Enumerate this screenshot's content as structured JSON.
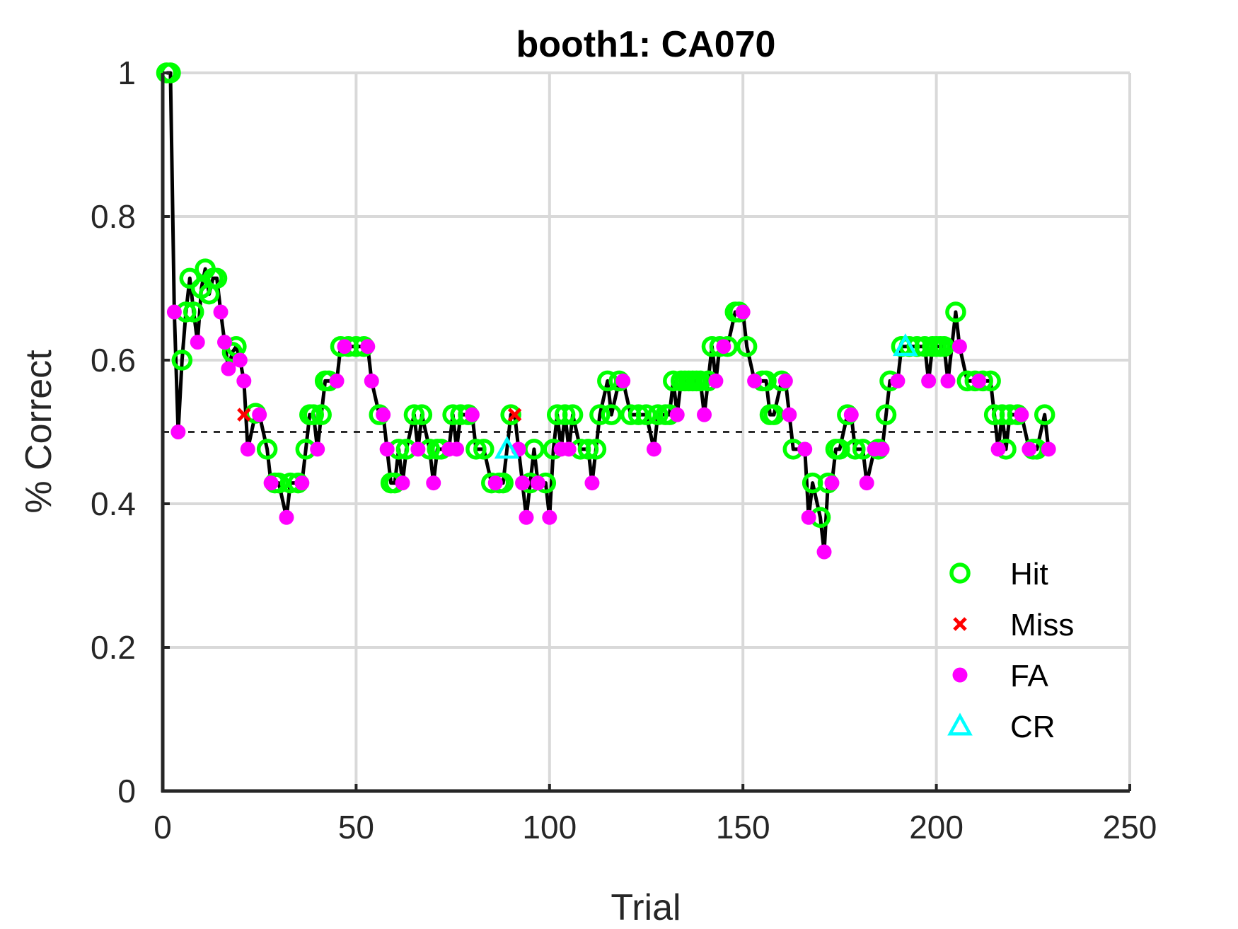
{
  "chart_data": {
    "type": "line",
    "title": "booth1: CA070",
    "xlabel": "Trial",
    "ylabel": "% Correct",
    "xlim": [
      0,
      250
    ],
    "ylim": [
      0,
      1
    ],
    "xticks": [
      "0",
      "50",
      "100",
      "150",
      "200",
      "250"
    ],
    "yticks": [
      "0",
      "0.2",
      "0.4",
      "0.6",
      "0.8",
      "1"
    ],
    "grid": true,
    "legend_position": "bottom-right",
    "chance_level": 0.5,
    "colors": {
      "line": "#000000",
      "hit": "#00ff00",
      "miss": "#ff0000",
      "fa": "#ff00ff",
      "cr": "#00ffff",
      "grid": "#d9d9d9",
      "axis": "#262626"
    },
    "series": [
      {
        "name": "Hit",
        "marker": "circle-open",
        "points": [
          [
            1,
            1
          ],
          [
            2,
            1
          ],
          [
            5,
            0.6
          ],
          [
            6,
            0.667
          ],
          [
            7,
            0.714
          ],
          [
            8,
            0.667
          ],
          [
            10,
            0.7
          ],
          [
            11,
            0.727
          ],
          [
            12,
            0.692
          ],
          [
            13,
            0.714
          ],
          [
            14,
            0.714
          ],
          [
            18,
            0.611
          ],
          [
            19,
            0.619
          ],
          [
            24,
            0.526
          ],
          [
            27,
            0.476
          ],
          [
            29,
            0.429
          ],
          [
            30,
            0.429
          ],
          [
            33,
            0.429
          ],
          [
            35,
            0.429
          ],
          [
            37,
            0.476
          ],
          [
            38,
            0.524
          ],
          [
            39,
            0.524
          ],
          [
            41,
            0.524
          ],
          [
            42,
            0.571
          ],
          [
            43,
            0.571
          ],
          [
            46,
            0.619
          ],
          [
            48,
            0.619
          ],
          [
            50,
            0.619
          ],
          [
            52,
            0.619
          ],
          [
            56,
            0.524
          ],
          [
            59,
            0.429
          ],
          [
            60,
            0.429
          ],
          [
            61,
            0.476
          ],
          [
            63,
            0.476
          ],
          [
            65,
            0.524
          ],
          [
            67,
            0.524
          ],
          [
            69,
            0.476
          ],
          [
            71,
            0.476
          ],
          [
            72,
            0.476
          ],
          [
            75,
            0.524
          ],
          [
            77,
            0.524
          ],
          [
            79,
            0.524
          ],
          [
            81,
            0.476
          ],
          [
            83,
            0.476
          ],
          [
            85,
            0.429
          ],
          [
            87,
            0.429
          ],
          [
            88,
            0.429
          ],
          [
            90,
            0.524
          ],
          [
            95,
            0.429
          ],
          [
            96,
            0.476
          ],
          [
            99,
            0.429
          ],
          [
            101,
            0.476
          ],
          [
            102,
            0.524
          ],
          [
            104,
            0.524
          ],
          [
            106,
            0.524
          ],
          [
            108,
            0.476
          ],
          [
            110,
            0.476
          ],
          [
            112,
            0.476
          ],
          [
            113,
            0.524
          ],
          [
            115,
            0.571
          ],
          [
            116,
            0.524
          ],
          [
            118,
            0.571
          ],
          [
            121,
            0.524
          ],
          [
            123,
            0.524
          ],
          [
            125,
            0.524
          ],
          [
            128,
            0.524
          ],
          [
            130,
            0.524
          ],
          [
            131,
            0.524
          ],
          [
            132,
            0.571
          ],
          [
            134,
            0.571
          ],
          [
            135,
            0.571
          ],
          [
            136,
            0.571
          ],
          [
            137,
            0.571
          ],
          [
            138,
            0.571
          ],
          [
            139,
            0.571
          ],
          [
            141,
            0.571
          ],
          [
            142,
            0.619
          ],
          [
            144,
            0.619
          ],
          [
            146,
            0.619
          ],
          [
            148,
            0.667
          ],
          [
            149,
            0.667
          ],
          [
            151,
            0.619
          ],
          [
            155,
            0.571
          ],
          [
            156,
            0.571
          ],
          [
            157,
            0.524
          ],
          [
            158,
            0.524
          ],
          [
            160,
            0.571
          ],
          [
            163,
            0.476
          ],
          [
            168,
            0.429
          ],
          [
            170,
            0.381
          ],
          [
            172,
            0.429
          ],
          [
            174,
            0.476
          ],
          [
            175,
            0.476
          ],
          [
            177,
            0.524
          ],
          [
            179,
            0.476
          ],
          [
            181,
            0.476
          ],
          [
            185,
            0.476
          ],
          [
            187,
            0.524
          ],
          [
            188,
            0.571
          ],
          [
            191,
            0.619
          ],
          [
            193,
            0.619
          ],
          [
            195,
            0.619
          ],
          [
            197,
            0.619
          ],
          [
            199,
            0.619
          ],
          [
            200,
            0.619
          ],
          [
            201,
            0.619
          ],
          [
            202,
            0.619
          ],
          [
            205,
            0.667
          ],
          [
            208,
            0.571
          ],
          [
            210,
            0.571
          ],
          [
            212,
            0.571
          ],
          [
            214,
            0.571
          ],
          [
            215,
            0.524
          ],
          [
            217,
            0.524
          ],
          [
            218,
            0.476
          ],
          [
            219,
            0.524
          ],
          [
            221,
            0.524
          ],
          [
            225,
            0.476
          ],
          [
            226,
            0.476
          ],
          [
            228,
            0.524
          ]
        ]
      },
      {
        "name": "Miss",
        "marker": "x",
        "points": [
          [
            21,
            0.524
          ],
          [
            91,
            0.524
          ]
        ]
      },
      {
        "name": "FA",
        "marker": "dot",
        "points": [
          [
            3,
            0.667
          ],
          [
            4,
            0.5
          ],
          [
            9,
            0.625
          ],
          [
            15,
            0.667
          ],
          [
            16,
            0.625
          ],
          [
            17,
            0.588
          ],
          [
            20,
            0.6
          ],
          [
            21,
            0.571
          ],
          [
            22,
            0.476
          ],
          [
            25,
            0.524
          ],
          [
            28,
            0.429
          ],
          [
            32,
            0.381
          ],
          [
            36,
            0.429
          ],
          [
            40,
            0.476
          ],
          [
            45,
            0.571
          ],
          [
            47,
            0.619
          ],
          [
            53,
            0.619
          ],
          [
            54,
            0.571
          ],
          [
            57,
            0.524
          ],
          [
            58,
            0.476
          ],
          [
            62,
            0.429
          ],
          [
            66,
            0.476
          ],
          [
            70,
            0.429
          ],
          [
            74,
            0.476
          ],
          [
            76,
            0.476
          ],
          [
            80,
            0.524
          ],
          [
            86,
            0.429
          ],
          [
            92,
            0.476
          ],
          [
            93,
            0.429
          ],
          [
            94,
            0.381
          ],
          [
            97,
            0.429
          ],
          [
            100,
            0.381
          ],
          [
            103,
            0.476
          ],
          [
            105,
            0.476
          ],
          [
            111,
            0.429
          ],
          [
            119,
            0.571
          ],
          [
            127,
            0.476
          ],
          [
            133,
            0.524
          ],
          [
            140,
            0.524
          ],
          [
            143,
            0.571
          ],
          [
            145,
            0.619
          ],
          [
            150,
            0.667
          ],
          [
            153,
            0.571
          ],
          [
            161,
            0.571
          ],
          [
            162,
            0.524
          ],
          [
            166,
            0.476
          ],
          [
            167,
            0.381
          ],
          [
            171,
            0.333
          ],
          [
            173,
            0.429
          ],
          [
            178,
            0.524
          ],
          [
            182,
            0.429
          ],
          [
            184,
            0.476
          ],
          [
            186,
            0.476
          ],
          [
            190,
            0.571
          ],
          [
            198,
            0.571
          ],
          [
            203,
            0.571
          ],
          [
            206,
            0.619
          ],
          [
            211,
            0.571
          ],
          [
            216,
            0.476
          ],
          [
            222,
            0.524
          ],
          [
            224,
            0.476
          ],
          [
            229,
            0.476
          ]
        ]
      },
      {
        "name": "CR",
        "marker": "triangle-open",
        "points": [
          [
            89,
            0.476
          ],
          [
            192,
            0.619
          ]
        ]
      }
    ],
    "line": {
      "x": [
        1,
        2,
        3,
        4,
        5,
        6,
        7,
        8,
        9,
        10,
        11,
        12,
        13,
        14,
        15,
        16,
        17,
        18,
        19,
        20,
        21,
        22,
        24,
        25,
        27,
        28,
        29,
        30,
        32,
        33,
        35,
        36,
        37,
        38,
        39,
        40,
        41,
        42,
        43,
        45,
        46,
        47,
        48,
        50,
        52,
        53,
        54,
        56,
        57,
        58,
        59,
        60,
        61,
        62,
        63,
        65,
        66,
        67,
        69,
        70,
        71,
        72,
        74,
        75,
        76,
        77,
        79,
        80,
        81,
        83,
        85,
        86,
        87,
        88,
        89,
        90,
        91,
        92,
        93,
        94,
        95,
        96,
        97,
        99,
        100,
        101,
        102,
        103,
        104,
        105,
        106,
        108,
        110,
        111,
        112,
        113,
        115,
        116,
        118,
        119,
        121,
        123,
        125,
        127,
        128,
        130,
        131,
        132,
        133,
        134,
        135,
        136,
        137,
        138,
        139,
        140,
        141,
        142,
        143,
        144,
        145,
        146,
        148,
        149,
        150,
        151,
        153,
        155,
        156,
        157,
        158,
        160,
        161,
        162,
        163,
        166,
        167,
        168,
        170,
        171,
        172,
        173,
        174,
        175,
        177,
        178,
        179,
        181,
        182,
        184,
        185,
        186,
        187,
        188,
        190,
        191,
        192,
        193,
        195,
        197,
        198,
        199,
        200,
        201,
        202,
        203,
        205,
        206,
        208,
        210,
        211,
        212,
        214,
        215,
        216,
        217,
        218,
        219,
        221,
        222,
        224,
        225,
        226,
        228,
        229
      ],
      "y": [
        1,
        1,
        0.667,
        0.5,
        0.6,
        0.667,
        0.714,
        0.667,
        0.625,
        0.7,
        0.727,
        0.692,
        0.714,
        0.714,
        0.667,
        0.625,
        0.588,
        0.611,
        0.619,
        0.6,
        0.571,
        0.476,
        0.526,
        0.524,
        0.476,
        0.429,
        0.429,
        0.429,
        0.381,
        0.429,
        0.429,
        0.429,
        0.476,
        0.524,
        0.524,
        0.476,
        0.524,
        0.571,
        0.571,
        0.571,
        0.619,
        0.619,
        0.619,
        0.619,
        0.619,
        0.619,
        0.571,
        0.524,
        0.524,
        0.476,
        0.429,
        0.429,
        0.476,
        0.429,
        0.476,
        0.524,
        0.476,
        0.524,
        0.476,
        0.429,
        0.476,
        0.476,
        0.476,
        0.524,
        0.476,
        0.524,
        0.524,
        0.524,
        0.476,
        0.476,
        0.429,
        0.429,
        0.429,
        0.429,
        0.476,
        0.524,
        0.524,
        0.476,
        0.429,
        0.381,
        0.429,
        0.476,
        0.429,
        0.429,
        0.381,
        0.476,
        0.524,
        0.476,
        0.524,
        0.476,
        0.524,
        0.476,
        0.476,
        0.429,
        0.476,
        0.524,
        0.571,
        0.524,
        0.571,
        0.571,
        0.524,
        0.524,
        0.524,
        0.476,
        0.524,
        0.524,
        0.524,
        0.571,
        0.524,
        0.571,
        0.571,
        0.571,
        0.571,
        0.571,
        0.571,
        0.524,
        0.571,
        0.619,
        0.571,
        0.619,
        0.619,
        0.619,
        0.667,
        0.667,
        0.667,
        0.619,
        0.571,
        0.571,
        0.571,
        0.524,
        0.524,
        0.571,
        0.571,
        0.524,
        0.476,
        0.476,
        0.381,
        0.429,
        0.381,
        0.333,
        0.429,
        0.429,
        0.476,
        0.476,
        0.524,
        0.524,
        0.476,
        0.476,
        0.429,
        0.476,
        0.476,
        0.476,
        0.524,
        0.571,
        0.571,
        0.619,
        0.619,
        0.619,
        0.619,
        0.619,
        0.571,
        0.619,
        0.619,
        0.619,
        0.619,
        0.571,
        0.667,
        0.619,
        0.571,
        0.571,
        0.571,
        0.571,
        0.571,
        0.524,
        0.476,
        0.524,
        0.476,
        0.524,
        0.524,
        0.524,
        0.476,
        0.476,
        0.476,
        0.524,
        0.476
      ]
    }
  }
}
